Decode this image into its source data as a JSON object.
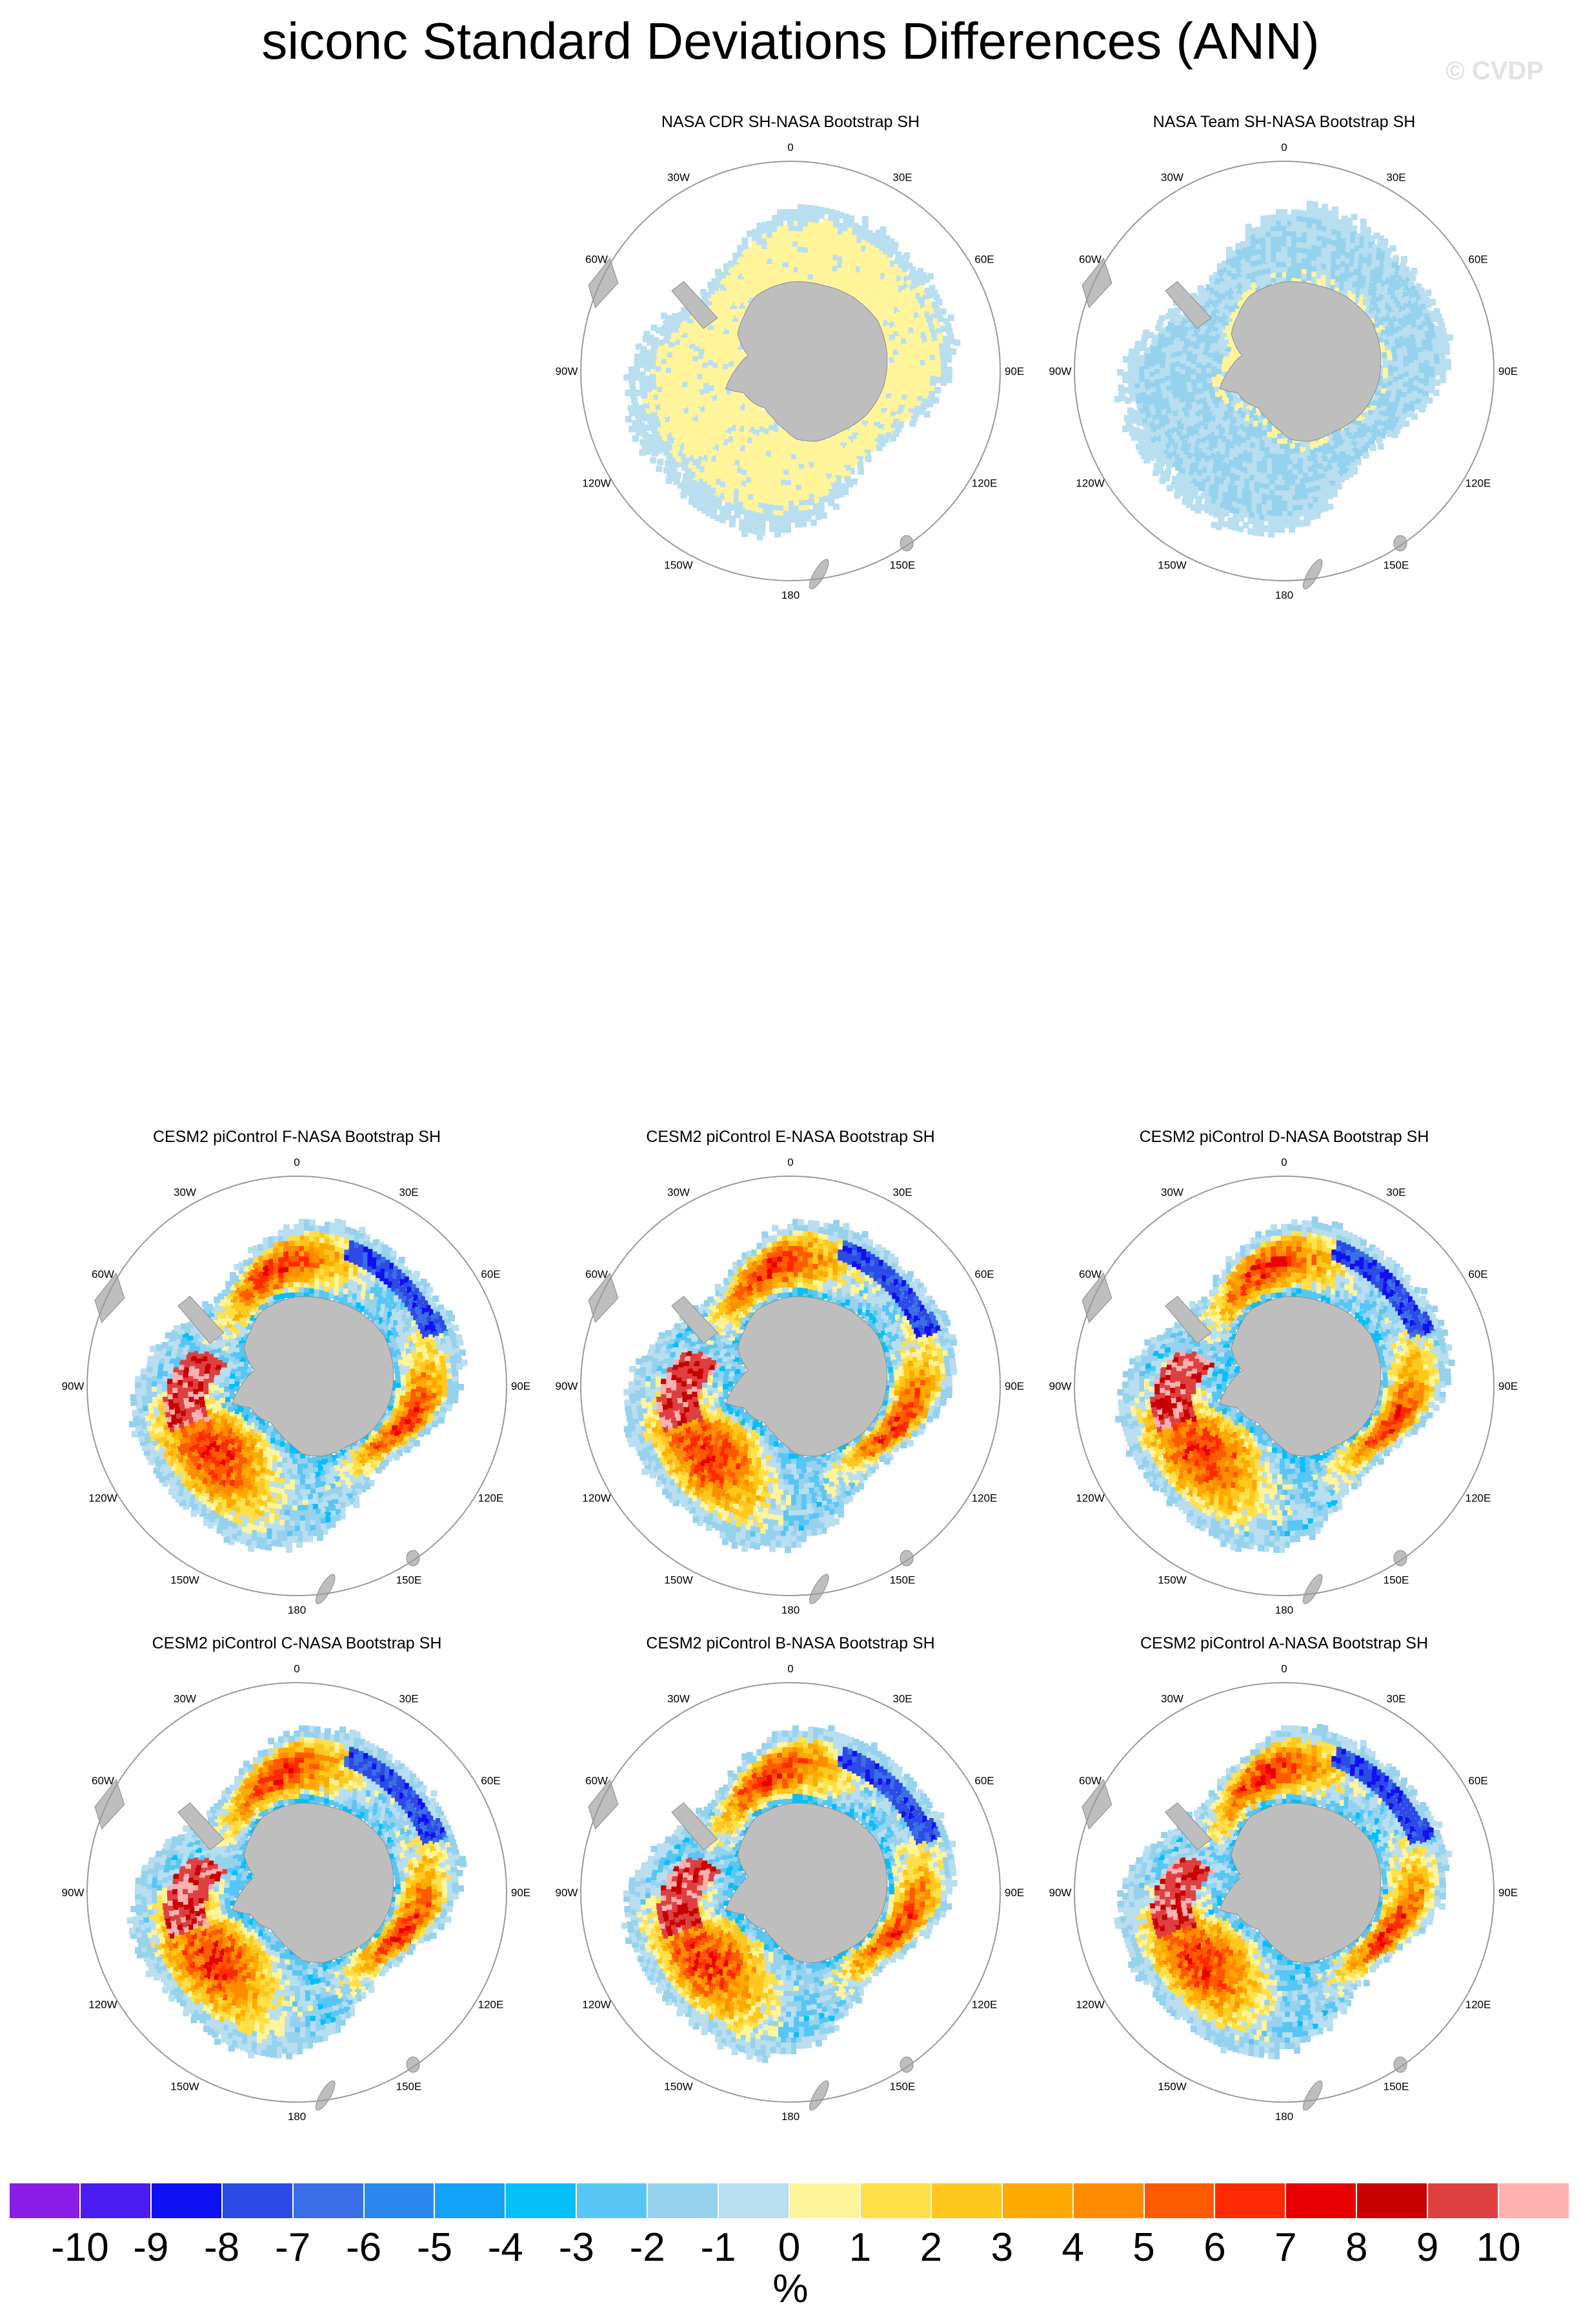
{
  "title": "siconc Standard Deviations Differences (ANN)",
  "watermark": "© CVDP",
  "longitude_labels": [
    "0",
    "30E",
    "60E",
    "90E",
    "120E",
    "150E",
    "180",
    "150W",
    "120W",
    "90W",
    "60W",
    "30W"
  ],
  "panels": [
    {
      "title": "NASA CDR SH-NASA Bootstrap SH",
      "field": "obs_cdr"
    },
    {
      "title": "NASA Team SH-NASA Bootstrap SH",
      "field": "obs_team"
    },
    {
      "title": "CESM2 piControl F-NASA Bootstrap SH",
      "field": "model"
    },
    {
      "title": "CESM2 piControl E-NASA Bootstrap SH",
      "field": "model"
    },
    {
      "title": "CESM2 piControl D-NASA Bootstrap SH",
      "field": "model"
    },
    {
      "title": "CESM2 piControl C-NASA Bootstrap SH",
      "field": "model"
    },
    {
      "title": "CESM2 piControl B-NASA Bootstrap SH",
      "field": "model"
    },
    {
      "title": "CESM2 piControl A-NASA Bootstrap SH",
      "field": "model"
    }
  ],
  "colorbar": {
    "labels": [
      "-10",
      "-9",
      "-8",
      "-7",
      "-6",
      "-5",
      "-4",
      "-3",
      "-2",
      "-1",
      "0",
      "1",
      "2",
      "3",
      "4",
      "5",
      "6",
      "7",
      "8",
      "9",
      "10"
    ],
    "colors": [
      "#8b1ce6",
      "#4a1cf2",
      "#0f10f4",
      "#2c4ae6",
      "#3a6ee8",
      "#2a88ee",
      "#14a2f6",
      "#06bef8",
      "#58c6f4",
      "#96d2ee",
      "#b8def0",
      "#fff49a",
      "#ffe048",
      "#ffc81e",
      "#ffaa00",
      "#ff8c00",
      "#ff5a00",
      "#ff2a00",
      "#e80000",
      "#c80000",
      "#de4040",
      "#ffb0b0"
    ],
    "units": "%"
  },
  "land_color": "#bebebe",
  "circle_color": "#9a9a9a"
}
